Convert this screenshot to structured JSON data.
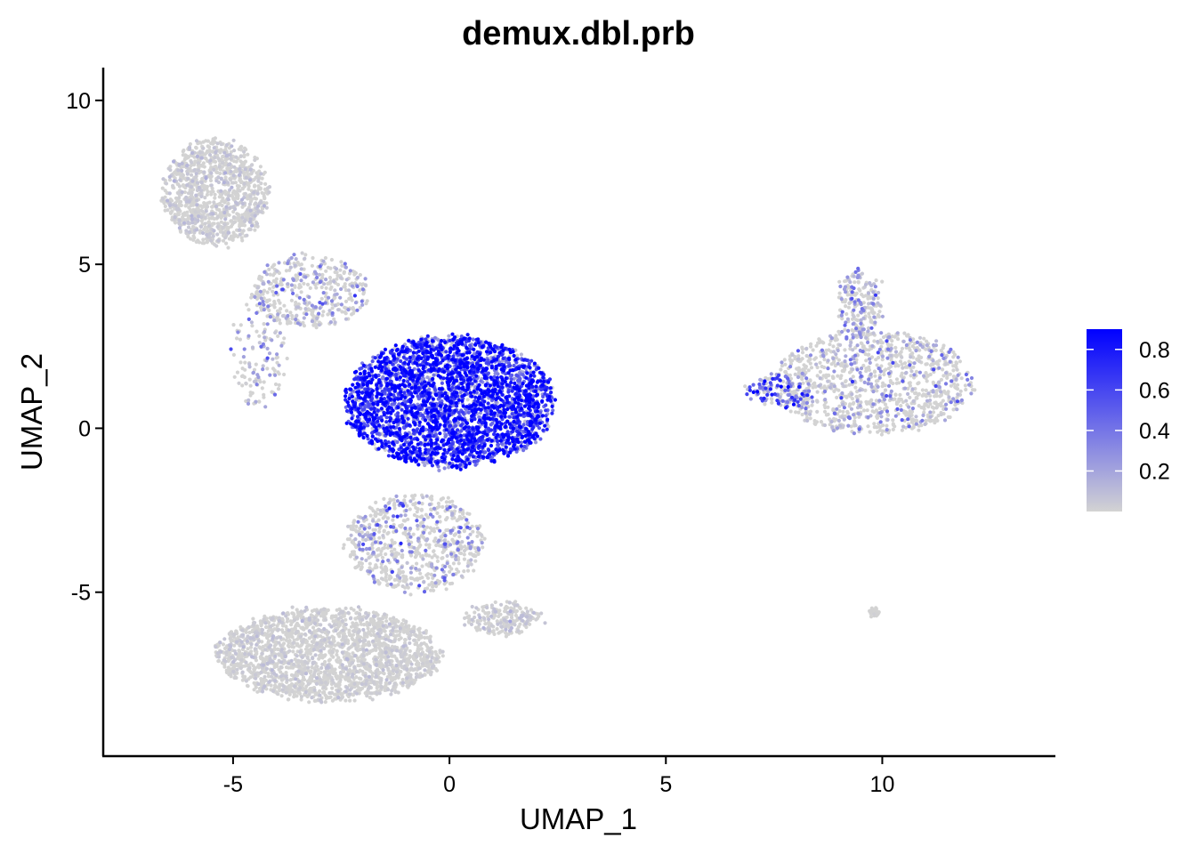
{
  "chart_data": {
    "type": "scatter",
    "title": "demux.dbl.prb",
    "xlabel": "UMAP_1",
    "ylabel": "UMAP_2",
    "xlim": [
      -8.0,
      14.0
    ],
    "ylim": [
      -10.0,
      11.0
    ],
    "xticks": [
      -5,
      0,
      5,
      10
    ],
    "yticks": [
      -5,
      0,
      5,
      10
    ],
    "xtick_labels": [
      "-5",
      "0",
      "5",
      "10"
    ],
    "ytick_labels": [
      "-5",
      "0",
      "5",
      "10"
    ],
    "grid": false,
    "legend": {
      "placement": "right",
      "type": "continuous-colorbar",
      "range": [
        0.0,
        0.9
      ],
      "ticks": [
        0.2,
        0.4,
        0.6,
        0.8
      ],
      "tick_labels": [
        "0.2",
        "0.4",
        "0.6",
        "0.8"
      ]
    },
    "colors": {
      "low": "#d3d3d3",
      "high": "#0000ff"
    },
    "clusters": [
      {
        "name": "top-left blob",
        "cx": -5.4,
        "cy": 7.2,
        "rx": 1.2,
        "ry": 1.6,
        "n": 1100,
        "prob_mean": 0.02,
        "prob_spread": 0.05
      },
      {
        "name": "upper bridge",
        "cx": -3.2,
        "cy": 4.2,
        "rx": 1.3,
        "ry": 1.1,
        "n": 400,
        "prob_mean": 0.08,
        "prob_spread": 0.2
      },
      {
        "name": "left arm",
        "cx": -4.4,
        "cy": 2.4,
        "rx": 0.6,
        "ry": 1.8,
        "n": 150,
        "prob_mean": 0.1,
        "prob_spread": 0.25
      },
      {
        "name": "central cluster",
        "cx": 0.0,
        "cy": 0.8,
        "rx": 2.4,
        "ry": 2.0,
        "n": 3200,
        "prob_mean": 0.65,
        "prob_spread": 0.35
      },
      {
        "name": "lower stem",
        "cx": -0.8,
        "cy": -3.5,
        "rx": 1.6,
        "ry": 1.5,
        "n": 700,
        "prob_mean": 0.1,
        "prob_spread": 0.25
      },
      {
        "name": "bottom blob",
        "cx": -2.8,
        "cy": -6.9,
        "rx": 2.6,
        "ry": 1.4,
        "n": 2200,
        "prob_mean": 0.01,
        "prob_spread": 0.04
      },
      {
        "name": "bottom right tail",
        "cx": 1.2,
        "cy": -5.8,
        "rx": 0.9,
        "ry": 0.5,
        "n": 200,
        "prob_mean": 0.02,
        "prob_spread": 0.06
      },
      {
        "name": "right cluster",
        "cx": 9.8,
        "cy": 1.4,
        "rx": 2.3,
        "ry": 1.6,
        "n": 1100,
        "prob_mean": 0.08,
        "prob_spread": 0.2
      },
      {
        "name": "right cluster tip",
        "cx": 9.5,
        "cy": 3.8,
        "rx": 0.5,
        "ry": 1.0,
        "n": 200,
        "prob_mean": 0.12,
        "prob_spread": 0.25
      },
      {
        "name": "right cluster left arm",
        "cx": 7.6,
        "cy": 1.1,
        "rx": 0.8,
        "ry": 0.5,
        "n": 120,
        "prob_mean": 0.35,
        "prob_spread": 0.35
      },
      {
        "name": "small isolated group",
        "cx": 9.8,
        "cy": -5.6,
        "rx": 0.12,
        "ry": 0.1,
        "n": 25,
        "prob_mean": 0.0,
        "prob_spread": 0.01
      }
    ]
  }
}
